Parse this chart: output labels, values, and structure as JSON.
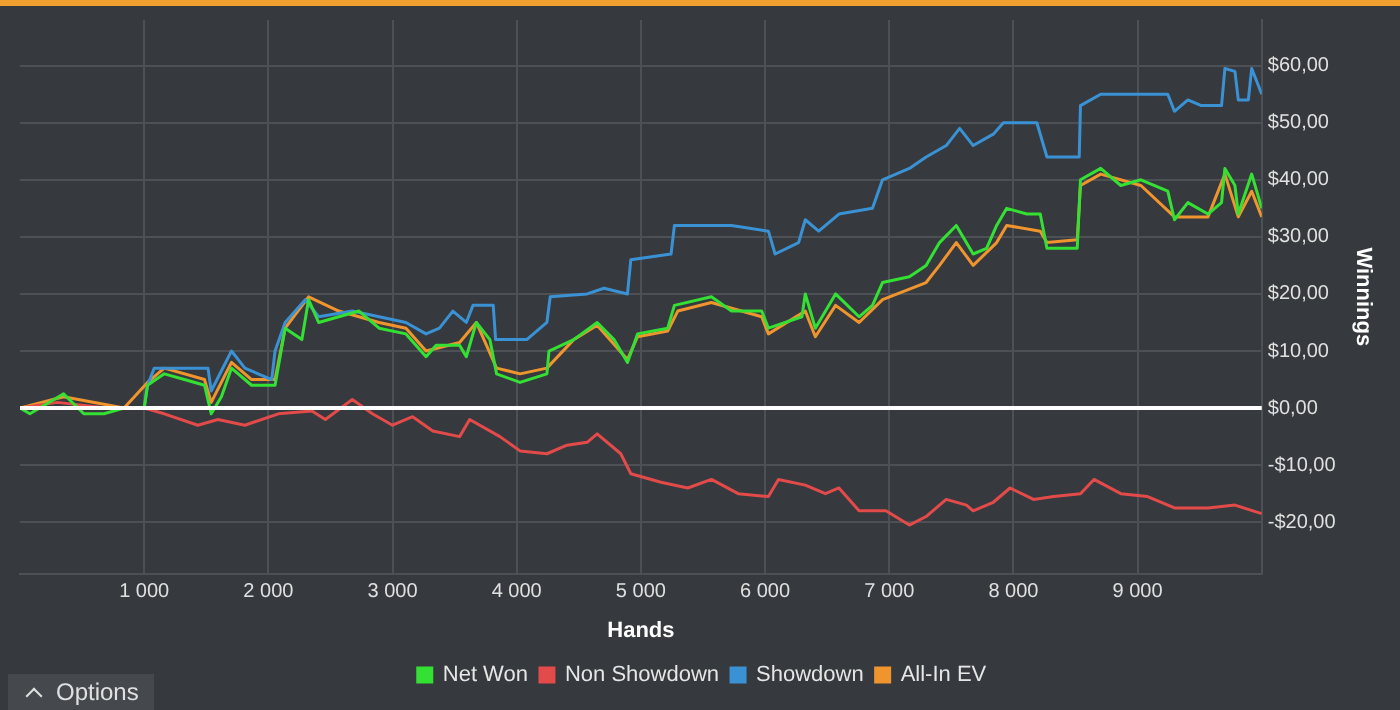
{
  "chart_data": {
    "type": "line",
    "xlabel": "Hands",
    "ylabel": "Winnings",
    "xlim": [
      0,
      10000
    ],
    "ylim": [
      -29,
      68
    ],
    "xticks": [
      {
        "value": 1000,
        "label": "1 000"
      },
      {
        "value": 2000,
        "label": "2 000"
      },
      {
        "value": 3000,
        "label": "3 000"
      },
      {
        "value": 4000,
        "label": "4 000"
      },
      {
        "value": 5000,
        "label": "5 000"
      },
      {
        "value": 6000,
        "label": "6 000"
      },
      {
        "value": 7000,
        "label": "7 000"
      },
      {
        "value": 8000,
        "label": "8 000"
      },
      {
        "value": 9000,
        "label": "9 000"
      }
    ],
    "yticks": [
      {
        "value": -20,
        "label": "-$20,00"
      },
      {
        "value": -10,
        "label": "-$10,00"
      },
      {
        "value": 0,
        "label": "$0,00"
      },
      {
        "value": 10,
        "label": "$10,00"
      },
      {
        "value": 20,
        "label": "$20,00"
      },
      {
        "value": 30,
        "label": "$30,00"
      },
      {
        "value": 40,
        "label": "$40,00"
      },
      {
        "value": 50,
        "label": "$50,00"
      },
      {
        "value": 60,
        "label": "$60,00"
      }
    ],
    "grid": true,
    "legend": "bottom",
    "marker": "none",
    "ref_lines": [
      {
        "axis": "y",
        "value": 0,
        "color": "#ffffff"
      }
    ],
    "annotations": [
      "Options"
    ],
    "series": [
      {
        "name": "Net Won",
        "color": "#33e033",
        "x": [
          0,
          80,
          351,
          514,
          676,
          838,
          1000,
          1027,
          1162,
          1324,
          1486,
          1540,
          1622,
          1703,
          1865,
          2054,
          2135,
          2270,
          2324,
          2405,
          2567,
          2730,
          2892,
          3108,
          3270,
          3351,
          3540,
          3594,
          3675,
          3784,
          3838,
          4027,
          4243,
          4260,
          4459,
          4648,
          4784,
          4892,
          4973,
          5216,
          5270,
          5568,
          5730,
          5973,
          6027,
          6297,
          6324,
          6405,
          6568,
          6757,
          6865,
          6946,
          7162,
          7297,
          7405,
          7540,
          7676,
          7784,
          7865,
          7946,
          8108,
          8216,
          8270,
          8514,
          8540,
          8703,
          8865,
          9027,
          9243,
          9297,
          9405,
          9567,
          9676,
          9703,
          9784,
          9811,
          9919,
          10000
        ],
        "values": [
          0,
          -1,
          2.5,
          -1,
          -1,
          0,
          0,
          4,
          6,
          5,
          4,
          -1,
          2,
          7,
          4,
          4,
          14,
          12,
          19,
          15,
          16,
          17,
          14,
          13,
          9,
          11,
          11,
          9,
          15,
          12,
          6,
          4.5,
          6,
          10,
          12,
          15,
          12,
          8,
          13,
          14,
          18,
          19.5,
          17,
          17,
          14,
          16,
          20,
          14,
          20,
          16,
          18,
          22,
          23,
          25,
          29,
          32,
          27,
          28,
          32,
          35,
          34,
          34,
          28,
          28,
          40,
          42,
          39,
          40,
          38,
          33,
          36,
          34,
          36,
          42,
          39,
          34,
          41,
          35
        ]
      },
      {
        "name": "Non Showdown",
        "color": "#e34a4a",
        "x": [
          0,
          300,
          700,
          1000,
          1162,
          1432,
          1594,
          1811,
          2081,
          2351,
          2459,
          2676,
          2838,
          3000,
          3162,
          3324,
          3540,
          3621,
          3865,
          4027,
          4243,
          4405,
          4567,
          4648,
          4838,
          4919,
          5162,
          5378,
          5568,
          5784,
          6027,
          6108,
          6324,
          6486,
          6595,
          6757,
          6973,
          7162,
          7297,
          7459,
          7622,
          7676,
          7838,
          7973,
          8162,
          8324,
          8540,
          8649,
          8865,
          9081,
          9297,
          9567,
          9784,
          10000
        ],
        "values": [
          0,
          1,
          0,
          0,
          -1,
          -3,
          -2,
          -3,
          -1,
          -0.5,
          -2,
          1.5,
          -1,
          -3,
          -1.5,
          -4,
          -5,
          -2,
          -5,
          -7.5,
          -8,
          -6.5,
          -6,
          -4.5,
          -8,
          -11.5,
          -13,
          -14,
          -12.5,
          -15,
          -15.5,
          -12.5,
          -13.5,
          -15,
          -14,
          -18,
          -18,
          -20.5,
          -19,
          -16,
          -17,
          -18,
          -16.5,
          -14,
          -16,
          -15.5,
          -15,
          -12.5,
          -15,
          -15.5,
          -17.5,
          -17.5,
          -17,
          -18.5
        ]
      },
      {
        "name": "Showdown",
        "color": "#3a92d4",
        "x": [
          0,
          1000,
          1027,
          1081,
          1514,
          1540,
          1703,
          1811,
          2027,
          2054,
          2135,
          2297,
          2405,
          2676,
          2892,
          3108,
          3270,
          3378,
          3486,
          3594,
          3648,
          3811,
          3830,
          4081,
          4243,
          4270,
          4567,
          4703,
          4892,
          4919,
          5243,
          5270,
          5730,
          6027,
          6081,
          6270,
          6324,
          6432,
          6595,
          6865,
          6946,
          7162,
          7297,
          7459,
          7567,
          7676,
          7838,
          7919,
          8189,
          8270,
          8530,
          8540,
          8703,
          9243,
          9297,
          9405,
          9513,
          9676,
          9703,
          9784,
          9811,
          9892,
          9919,
          10000
        ],
        "values": [
          0,
          0,
          4,
          7,
          7,
          3,
          10,
          7,
          5,
          10,
          15,
          19,
          16,
          17,
          16,
          15,
          13,
          14,
          17,
          15,
          18,
          18,
          12,
          12,
          15,
          19.5,
          20,
          21,
          20,
          26,
          27,
          32,
          32,
          31,
          27,
          29,
          33,
          31,
          34,
          35,
          40,
          42,
          44,
          46,
          49,
          46,
          48,
          50,
          50,
          44,
          44,
          53,
          55,
          55,
          52,
          54,
          53,
          53,
          59.5,
          59,
          54,
          54,
          59.5,
          55
        ]
      },
      {
        "name": "All-In EV",
        "color": "#f0952e",
        "x": [
          0,
          351,
          838,
          1027,
          1162,
          1486,
          1540,
          1703,
          1865,
          2054,
          2135,
          2324,
          2567,
          2892,
          3108,
          3270,
          3540,
          3675,
          3838,
          4027,
          4243,
          4459,
          4648,
          4892,
          4973,
          5216,
          5297,
          5568,
          5973,
          6027,
          6324,
          6405,
          6568,
          6757,
          6946,
          7297,
          7405,
          7540,
          7676,
          7865,
          7946,
          8216,
          8270,
          8514,
          8540,
          8703,
          9027,
          9297,
          9567,
          9703,
          9811,
          9919,
          10000
        ],
        "values": [
          0,
          2,
          0,
          4.5,
          7,
          5,
          1,
          8,
          5,
          5,
          14,
          19.5,
          17,
          15,
          14,
          10,
          11.5,
          15,
          7,
          6,
          7,
          12,
          14.5,
          8.5,
          12.5,
          13.5,
          17,
          18.5,
          16,
          13,
          17,
          12.5,
          18,
          15,
          19,
          22,
          25,
          29,
          25,
          29,
          32,
          31,
          29,
          29.5,
          39,
          41,
          39,
          33.5,
          33.5,
          41,
          33.5,
          38,
          33.5
        ]
      }
    ]
  }
}
